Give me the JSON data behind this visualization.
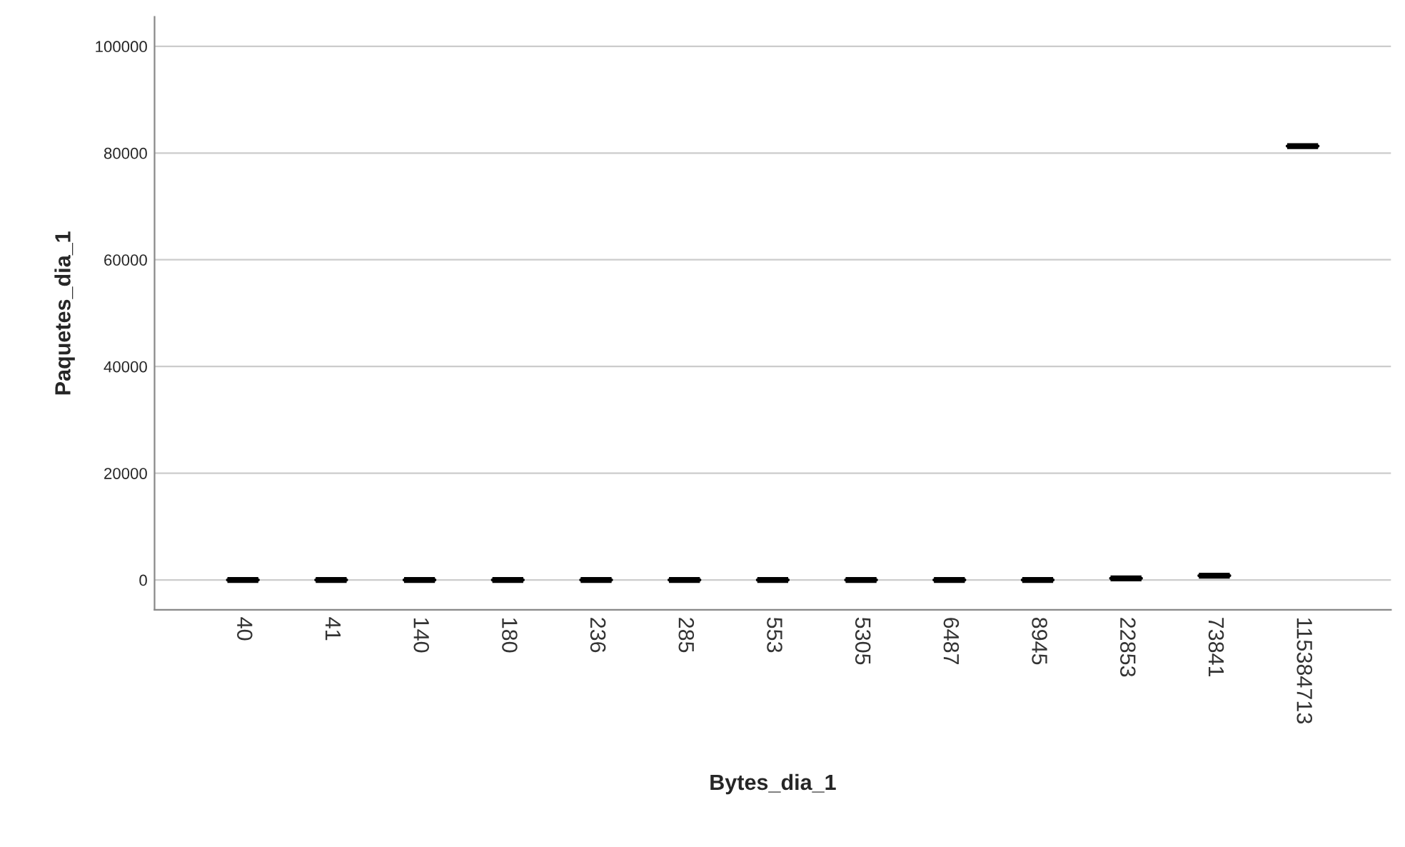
{
  "chart_data": {
    "type": "box",
    "xlabel": "Bytes_dia_1",
    "ylabel": "Paquetes_dia_1",
    "categories": [
      "40",
      "41",
      "140",
      "180",
      "236",
      "285",
      "553",
      "5305",
      "6487",
      "8945",
      "22853",
      "73841",
      "115384713"
    ],
    "boxes": [
      {
        "low": 0,
        "q1": 0,
        "median": 0,
        "q3": 0,
        "high": 0
      },
      {
        "low": 0,
        "q1": 0,
        "median": 0,
        "q3": 0,
        "high": 0
      },
      {
        "low": 0,
        "q1": 0,
        "median": 0,
        "q3": 0,
        "high": 0
      },
      {
        "low": 0,
        "q1": 0,
        "median": 0,
        "q3": 0,
        "high": 0
      },
      {
        "low": 0,
        "q1": 0,
        "median": 0,
        "q3": 0,
        "high": 0
      },
      {
        "low": 0,
        "q1": 0,
        "median": 0,
        "q3": 0,
        "high": 0
      },
      {
        "low": 0,
        "q1": 0,
        "median": 0,
        "q3": 0,
        "high": 0
      },
      {
        "low": 0,
        "q1": 0,
        "median": 0,
        "q3": 0,
        "high": 0
      },
      {
        "low": 0,
        "q1": 0,
        "median": 0,
        "q3": 0,
        "high": 0
      },
      {
        "low": 0,
        "q1": 0,
        "median": 0,
        "q3": 0,
        "high": 0
      },
      {
        "low": 300,
        "q1": 300,
        "median": 300,
        "q3": 300,
        "high": 300
      },
      {
        "low": 800,
        "q1": 800,
        "median": 800,
        "q3": 800,
        "high": 800
      },
      {
        "low": 81300,
        "q1": 81300,
        "median": 81300,
        "q3": 81300,
        "high": 81300
      }
    ],
    "color": "#000000",
    "ylim": [
      -5600,
      105500
    ],
    "yticks": [
      0,
      20000,
      40000,
      60000,
      80000,
      100000
    ],
    "grid": "y"
  }
}
